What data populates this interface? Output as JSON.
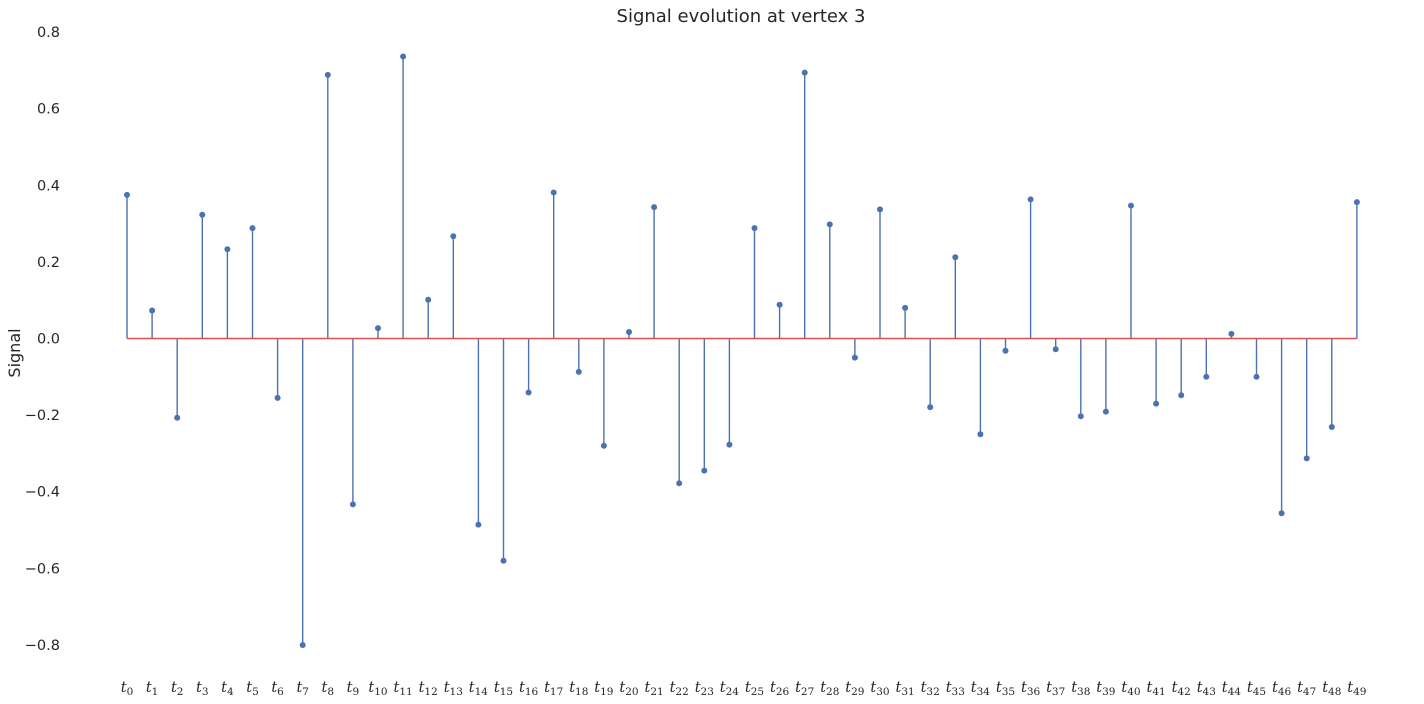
{
  "chart_data": {
    "type": "stem",
    "title": "Signal evolution at vertex 3",
    "xlabel": "",
    "ylabel": "Signal",
    "ylim": [
      -0.88,
      0.8
    ],
    "yticks": [
      -0.8,
      -0.6,
      -0.4,
      -0.2,
      0.0,
      0.2,
      0.4,
      0.6,
      0.8
    ],
    "ytick_labels": [
      "−0.8",
      "−0.6",
      "−0.4",
      "−0.2",
      "0.0",
      "0.2",
      "0.4",
      "0.6",
      "0.8"
    ],
    "grid": false,
    "categories": [
      "t_0",
      "t_1",
      "t_2",
      "t_3",
      "t_4",
      "t_5",
      "t_6",
      "t_7",
      "t_8",
      "t_9",
      "t_10",
      "t_11",
      "t_12",
      "t_13",
      "t_14",
      "t_15",
      "t_16",
      "t_17",
      "t_18",
      "t_19",
      "t_20",
      "t_21",
      "t_22",
      "t_23",
      "t_24",
      "t_25",
      "t_26",
      "t_27",
      "t_28",
      "t_29",
      "t_30",
      "t_31",
      "t_32",
      "t_33",
      "t_34",
      "t_35",
      "t_36",
      "t_37",
      "t_38",
      "t_39",
      "t_40",
      "t_41",
      "t_42",
      "t_43",
      "t_44",
      "t_45",
      "t_46",
      "t_47",
      "t_48",
      "t_49"
    ],
    "values": [
      0.375,
      0.073,
      -0.207,
      0.323,
      0.233,
      0.288,
      -0.155,
      -0.8,
      0.688,
      -0.433,
      0.027,
      0.736,
      0.101,
      0.267,
      -0.486,
      -0.58,
      -0.141,
      0.381,
      -0.087,
      -0.28,
      0.017,
      0.343,
      -0.378,
      -0.345,
      -0.277,
      0.288,
      0.088,
      0.694,
      0.298,
      -0.05,
      0.337,
      0.08,
      -0.179,
      0.212,
      -0.25,
      -0.032,
      0.363,
      -0.028,
      -0.203,
      -0.191,
      0.347,
      -0.17,
      -0.148,
      -0.1,
      0.012,
      -0.1,
      -0.456,
      -0.313,
      -0.231,
      0.356
    ],
    "colors": {
      "stem": "#4c72b0",
      "baseline": "#d9534f",
      "text": "#262626"
    }
  }
}
